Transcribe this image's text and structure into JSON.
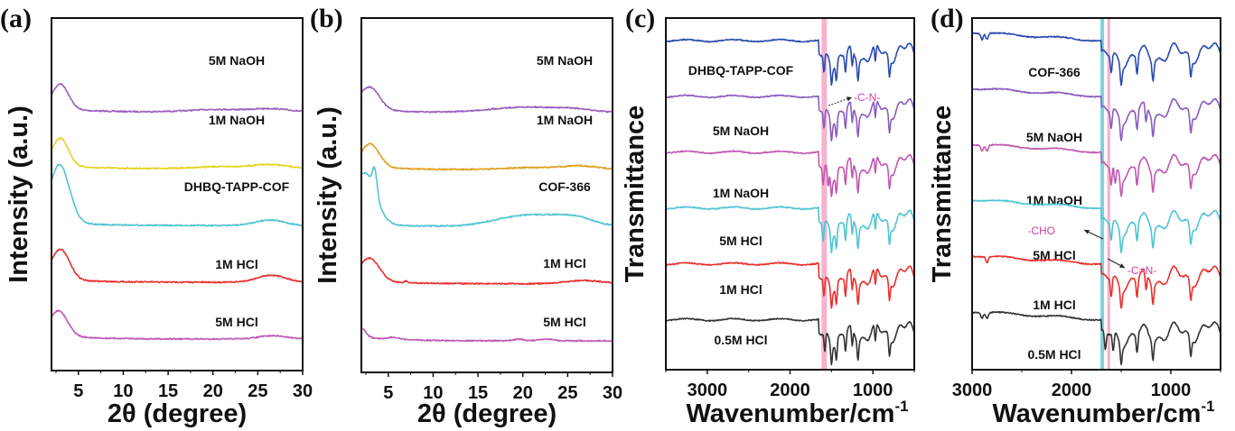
{
  "chart_data": [
    {
      "id": "a",
      "panel_label": "(a)",
      "type": "line",
      "title": "",
      "xlabel": "2θ (degree)",
      "ylabel": "Intensity (a.u.)",
      "xlim": [
        2,
        30
      ],
      "x_reversed": false,
      "xticks": [
        5,
        10,
        15,
        20,
        25,
        30
      ],
      "yticks": [],
      "grid": false,
      "legend": "inline-labels",
      "series": [
        {
          "name": "5M NaOH",
          "color": "#9b5fc0",
          "offset": 4,
          "peaks": [
            [
              3.0,
              1.0,
              0.9
            ],
            [
              20.5,
              0.1,
              3.0
            ],
            [
              26.5,
              0.12,
              2.0
            ]
          ]
        },
        {
          "name": "1M NaOH",
          "color": "#e6d21e",
          "offset": 3,
          "peaks": [
            [
              3.0,
              1.1,
              0.9
            ],
            [
              21.0,
              0.08,
              3.0
            ],
            [
              26.5,
              0.15,
              2.0
            ]
          ]
        },
        {
          "name": "DHBQ-TAPP-COF",
          "color": "#4fc4d2",
          "offset": 2,
          "peaks": [
            [
              2.9,
              2.3,
              1.1
            ],
            [
              26.3,
              0.22,
              1.6
            ]
          ]
        },
        {
          "name": "1M HCl",
          "color": "#e8302d",
          "offset": 1,
          "peaks": [
            [
              3.0,
              1.2,
              1.0
            ],
            [
              26.5,
              0.28,
              1.6
            ]
          ]
        },
        {
          "name": "5M HCl",
          "color": "#c05ab8",
          "offset": 0,
          "peaks": [
            [
              2.8,
              1.0,
              1.0
            ],
            [
              26.7,
              0.13,
              1.6
            ]
          ]
        }
      ]
    },
    {
      "id": "b",
      "panel_label": "(b)",
      "type": "line",
      "title": "",
      "xlabel": "2θ (degree)",
      "ylabel": "Intensity (a.u.)",
      "xlim": [
        2,
        30
      ],
      "x_reversed": false,
      "xticks": [
        5,
        10,
        15,
        20,
        25,
        30
      ],
      "yticks": [],
      "grid": false,
      "legend": "inline-labels",
      "series": [
        {
          "name": "5M NaOH",
          "color": "#9b5fc0",
          "offset": 4,
          "peaks": [
            [
              2.9,
              0.9,
              1.1
            ],
            [
              20.5,
              0.22,
              4.0
            ],
            [
              26.0,
              0.08,
              2.0
            ]
          ]
        },
        {
          "name": "1M NaOH",
          "color": "#e0a020",
          "offset": 3,
          "peaks": [
            [
              3.0,
              0.9,
              1.0
            ],
            [
              21.0,
              0.08,
              3.0
            ],
            [
              26.5,
              0.14,
              2.0
            ]
          ]
        },
        {
          "name": "COF-366",
          "color": "#4fc4d2",
          "offset": 2,
          "peaks": [
            [
              2.4,
              2.0,
              1.2
            ],
            [
              3.5,
              0.9,
              0.25
            ],
            [
              20.5,
              0.45,
              3.5
            ],
            [
              25.8,
              0.3,
              2.2
            ]
          ]
        },
        {
          "name": "1M HCl",
          "color": "#e8302d",
          "offset": 1,
          "peaks": [
            [
              2.9,
              0.9,
              1.1
            ],
            [
              7.0,
              0.06,
              0.2
            ],
            [
              26.8,
              0.13,
              2.0
            ]
          ]
        },
        {
          "name": "5M HCl",
          "color": "#c05ab8",
          "offset": 0,
          "peaks": [
            [
              2.0,
              0.35,
              0.5
            ],
            [
              5.5,
              0.08,
              0.6
            ],
            [
              19.5,
              0.06,
              0.6
            ],
            [
              22.7,
              0.06,
              0.8
            ]
          ]
        }
      ]
    },
    {
      "id": "c",
      "panel_label": "(c)",
      "type": "line",
      "title": "",
      "xlabel": "Wavenumber/cm",
      "xlabel_superscript": "-1",
      "ylabel": "Transmittance",
      "xlim": [
        3500,
        500
      ],
      "x_reversed": true,
      "xticks": [
        3000,
        2000,
        1000
      ],
      "yticks": [],
      "grid": false,
      "legend": "inline-labels",
      "highlight_bands": [
        {
          "from": 1620,
          "to": 1555,
          "color": "#f4a6c6"
        }
      ],
      "highlight_lines": [],
      "edge": 1650,
      "series": [
        {
          "name": "DHBQ-TAPP-COF",
          "color": "#2b4bb0",
          "offset": 5,
          "dips": [
            1590,
            1500,
            1440,
            1330,
            1250,
            1180,
            970,
            800
          ]
        },
        {
          "name": "5M NaOH",
          "color": "#8a5cc0",
          "offset": 4,
          "dips": [
            1590,
            1500,
            1440,
            1330,
            1250,
            1180,
            970,
            800
          ]
        },
        {
          "name": "1M NaOH",
          "color": "#c058b0",
          "offset": 3,
          "dips": [
            1600,
            1540,
            1500,
            1440,
            1330,
            1250,
            1180,
            970,
            800
          ]
        },
        {
          "name": "5M HCl",
          "color": "#4fc4d2",
          "offset": 2,
          "dips": [
            1600,
            1500,
            1440,
            1330,
            1250,
            1180,
            970,
            800
          ]
        },
        {
          "name": "1M HCl",
          "color": "#e8302d",
          "offset": 1,
          "dips": [
            1590,
            1500,
            1440,
            1330,
            1250,
            1180,
            970,
            800
          ]
        },
        {
          "name": "0.5M HCl",
          "color": "#333333",
          "offset": 0,
          "dips": [
            1580,
            1500,
            1440,
            1330,
            1250,
            1180,
            970,
            800
          ]
        }
      ],
      "annotations": [
        {
          "text": "-C-N-",
          "color": "#d0409a",
          "arrow": "right",
          "near_x": 1560
        }
      ]
    },
    {
      "id": "d",
      "panel_label": "(d)",
      "type": "line",
      "title": "",
      "xlabel": "Wavenumber/cm",
      "xlabel_superscript": "-1",
      "ylabel": "Transmittance",
      "xlim": [
        3000,
        500
      ],
      "x_reversed": true,
      "xticks": [
        3000,
        2000,
        1000
      ],
      "yticks": [],
      "grid": false,
      "legend": "inline-labels",
      "highlight_bands": [
        {
          "from": 1640,
          "to": 1610,
          "color": "#f4a6c6"
        }
      ],
      "highlight_lines": [
        {
          "x": 1690,
          "color": "#7fd0dc"
        }
      ],
      "edge": 1700,
      "series": [
        {
          "name": "COF-366",
          "color": "#2b4bb0",
          "offset": 5,
          "dips": [
            2900,
            2850,
            1600,
            1500,
            1340,
            1180,
            800
          ]
        },
        {
          "name": "5M NaOH",
          "color": "#8a5cc0",
          "offset": 4,
          "dips": [
            1600,
            1500,
            1340,
            1250,
            1180,
            800
          ]
        },
        {
          "name": "1M NaOH",
          "color": "#c058b0",
          "offset": 3,
          "dips": [
            2900,
            2850,
            1600,
            1560,
            1500,
            1340,
            1180,
            800
          ]
        },
        {
          "name": "5M HCl",
          "color": "#4fc4d2",
          "offset": 2,
          "dips": [
            1600,
            1500,
            1340,
            1180,
            800
          ]
        },
        {
          "name": "1M HCl",
          "color": "#e8302d",
          "offset": 1,
          "dips": [
            2850,
            1600,
            1500,
            1340,
            1250,
            1180,
            800
          ]
        },
        {
          "name": "0.5M HCl",
          "color": "#333333",
          "offset": 0,
          "dips": [
            2900,
            2850,
            1660,
            1580,
            1500,
            1340,
            1180,
            800
          ]
        }
      ],
      "annotations": [
        {
          "text": "-CHO",
          "color": "#d0409a",
          "arrow": "left",
          "near_x": 1690
        },
        {
          "text": "-C=N-",
          "color": "#d0409a",
          "arrow": "right",
          "near_x": 1620
        }
      ]
    }
  ]
}
